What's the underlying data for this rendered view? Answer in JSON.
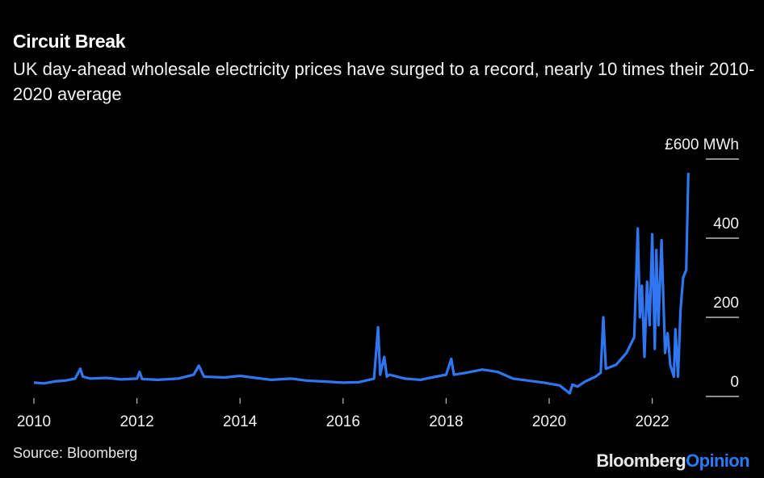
{
  "header": {
    "title": "Circuit Break",
    "subtitle": "UK day-ahead wholesale electricity prices have surged to a record, nearly 10 times their 2010-2020 average"
  },
  "footer": {
    "source": "Source: Bloomberg",
    "logo_part1": "Bloomberg",
    "logo_part2": "Opinion"
  },
  "chart_data": {
    "type": "line",
    "title": "Circuit Break",
    "ylabel": "£ MWh",
    "ylim": [
      0,
      600
    ],
    "xlim": [
      2010,
      2023
    ],
    "x_ticks": [
      {
        "value": 2010,
        "label": "2010"
      },
      {
        "value": 2012,
        "label": "2012"
      },
      {
        "value": 2014,
        "label": "2014"
      },
      {
        "value": 2016,
        "label": "2016"
      },
      {
        "value": 2018,
        "label": "2018"
      },
      {
        "value": 2020,
        "label": "2020"
      },
      {
        "value": 2022,
        "label": "2022"
      }
    ],
    "y_ticks": [
      {
        "value": 0,
        "label": "0"
      },
      {
        "value": 200,
        "label": "200"
      },
      {
        "value": 400,
        "label": "400"
      },
      {
        "value": 600,
        "label": "£600 MWh"
      }
    ],
    "line_color": "#2f76f0",
    "series": [
      {
        "name": "UK day-ahead wholesale electricity price",
        "x": [
          2010.0,
          2010.2,
          2010.4,
          2010.6,
          2010.8,
          2010.9,
          2010.95,
          2011.1,
          2011.4,
          2011.7,
          2012.0,
          2012.05,
          2012.1,
          2012.4,
          2012.8,
          2013.1,
          2013.2,
          2013.3,
          2013.7,
          2014.0,
          2014.3,
          2014.6,
          2015.0,
          2015.3,
          2015.6,
          2016.0,
          2016.3,
          2016.6,
          2016.68,
          2016.72,
          2016.8,
          2016.85,
          2016.9,
          2017.2,
          2017.5,
          2017.8,
          2018.0,
          2018.1,
          2018.15,
          2018.4,
          2018.7,
          2019.0,
          2019.3,
          2019.6,
          2019.9,
          2020.2,
          2020.4,
          2020.45,
          2020.55,
          2020.7,
          2020.9,
          2021.0,
          2021.05,
          2021.1,
          2021.3,
          2021.5,
          2021.65,
          2021.72,
          2021.76,
          2021.8,
          2021.85,
          2021.9,
          2021.95,
          2022.0,
          2022.05,
          2022.08,
          2022.12,
          2022.18,
          2022.25,
          2022.3,
          2022.35,
          2022.42,
          2022.45,
          2022.5,
          2022.55,
          2022.6,
          2022.66,
          2022.7
        ],
        "y": [
          35,
          33,
          38,
          40,
          45,
          70,
          50,
          45,
          47,
          43,
          45,
          62,
          44,
          42,
          45,
          55,
          78,
          50,
          48,
          52,
          47,
          42,
          45,
          40,
          38,
          35,
          36,
          45,
          175,
          55,
          100,
          50,
          55,
          45,
          42,
          50,
          55,
          95,
          55,
          60,
          68,
          62,
          45,
          40,
          35,
          28,
          8,
          30,
          25,
          38,
          50,
          60,
          200,
          70,
          80,
          110,
          150,
          425,
          200,
          280,
          100,
          290,
          180,
          410,
          120,
          370,
          180,
          395,
          110,
          160,
          80,
          50,
          170,
          50,
          220,
          300,
          320,
          565
        ]
      }
    ]
  }
}
